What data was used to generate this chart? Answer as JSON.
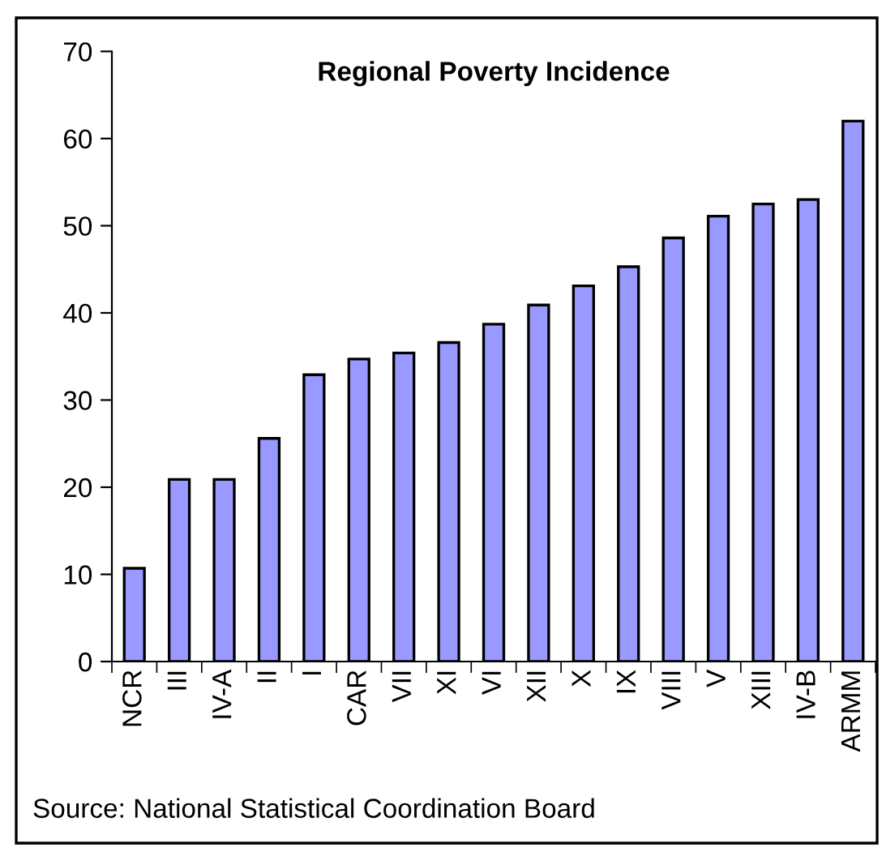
{
  "chart_data": {
    "type": "bar",
    "title": "Regional Poverty Incidence",
    "categories": [
      "NCR",
      "III",
      "IV-A",
      "II",
      "I",
      "CAR",
      "VII",
      "XI",
      "VI",
      "XII",
      "X",
      "IX",
      "VIII",
      "V",
      "XIII",
      "IV-B",
      "ARMM"
    ],
    "values": [
      10.7,
      20.9,
      20.9,
      25.6,
      32.9,
      34.7,
      35.4,
      36.6,
      38.7,
      40.9,
      43.1,
      45.3,
      48.6,
      51.1,
      52.5,
      53.0,
      62.0
    ],
    "color": "#9999ff",
    "ylim": [
      0,
      70
    ],
    "yticks": [
      0,
      10,
      20,
      30,
      40,
      50,
      60,
      70
    ],
    "grid": false,
    "legend": false,
    "annotations": [
      "Source: National Statistical Coordination Board"
    ]
  }
}
